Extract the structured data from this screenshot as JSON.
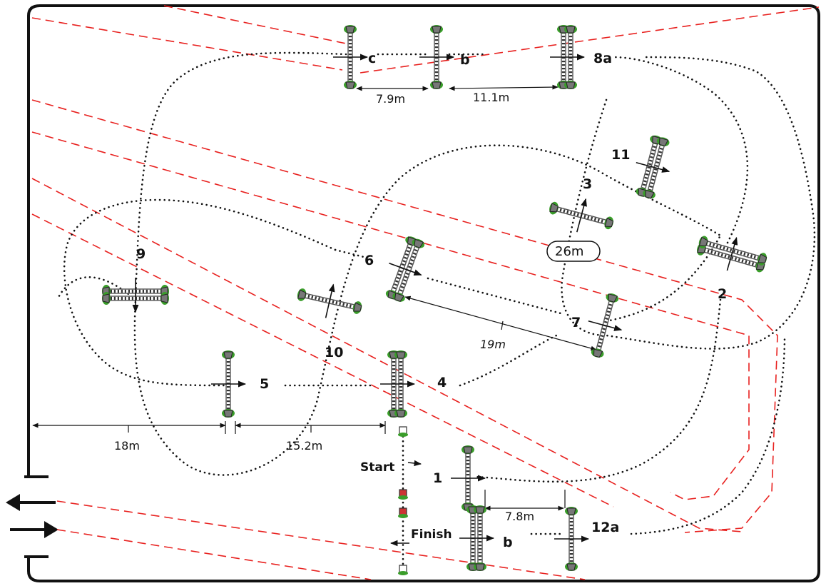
{
  "course": {
    "fences": [
      {
        "label": "1"
      },
      {
        "label": "2"
      },
      {
        "label": "3"
      },
      {
        "label": "4"
      },
      {
        "label": "5"
      },
      {
        "label": "6"
      },
      {
        "label": "7"
      },
      {
        "label": "8a"
      },
      {
        "label": "b"
      },
      {
        "label": "c"
      },
      {
        "label": "9"
      },
      {
        "label": "10"
      },
      {
        "label": "11"
      },
      {
        "label": "12a"
      },
      {
        "label": "b"
      }
    ],
    "start_label": "Start",
    "finish_label": "Finish",
    "badge_distance": "26m",
    "distances": [
      "7.9m",
      "11.1m",
      "19m",
      "18m",
      "15.2m",
      "7.8m"
    ]
  },
  "colors": {
    "track": "#e8211f",
    "pole_edge": "#555555",
    "base": "#3a9d2a",
    "outline": "#111111"
  },
  "icons": {
    "exit_arrow": "arrow-left-icon",
    "entry_arrow": "arrow-right-icon"
  }
}
